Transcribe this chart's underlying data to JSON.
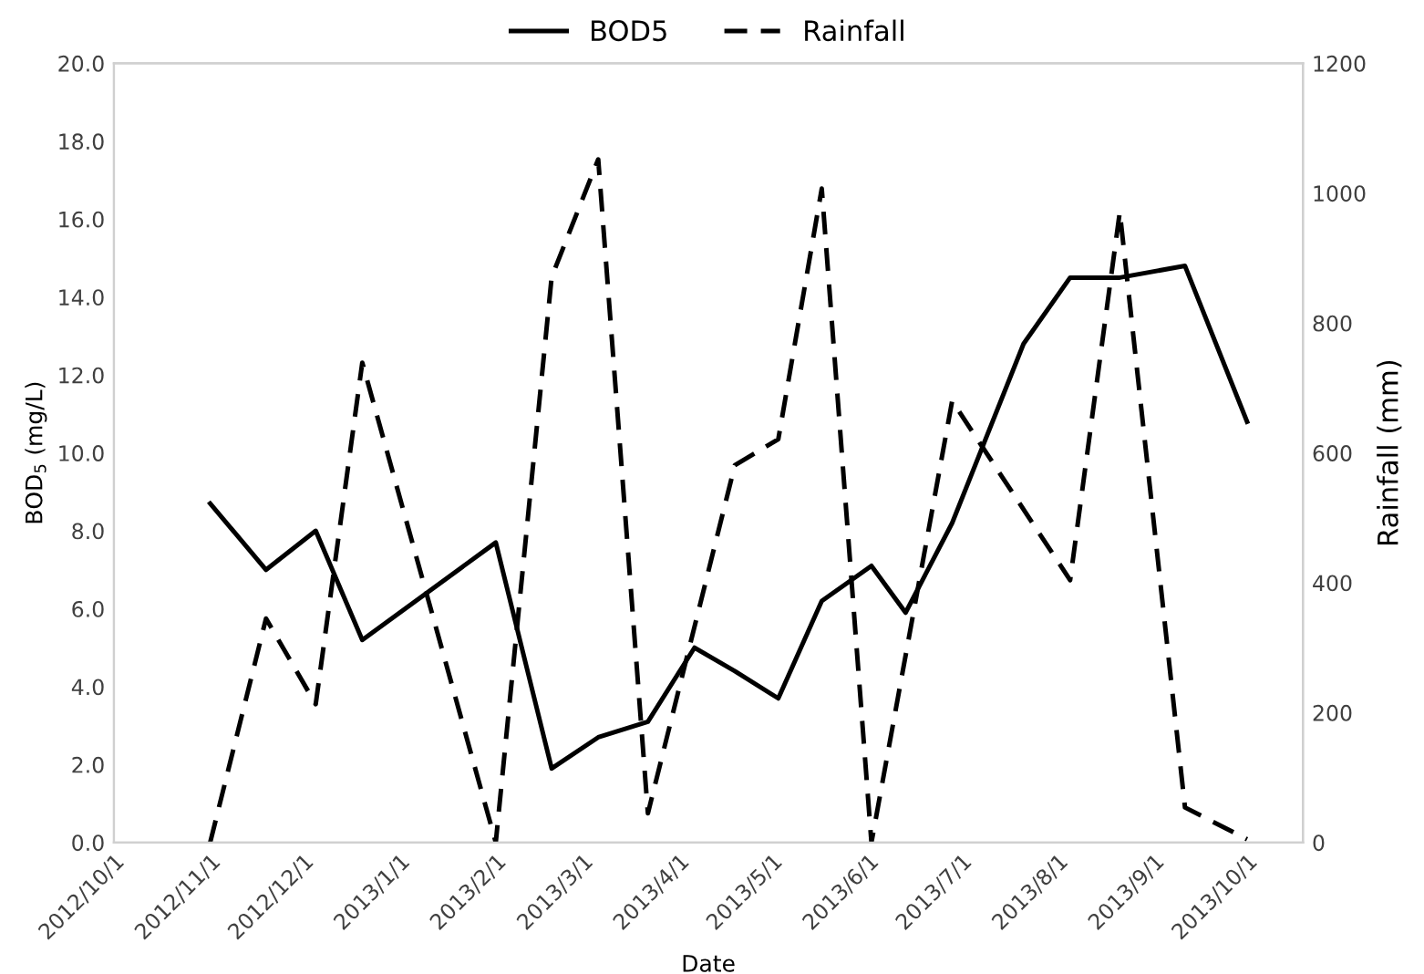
{
  "chart_data": {
    "type": "line",
    "xlabel": "Date",
    "ylabel": "BOD$_{5}$ (mg/L)",
    "y2label": "Rainfall (mm)",
    "xlim": [
      "2012-10-01",
      "2013-10-19"
    ],
    "xticks": [
      {
        "value": "2012-10-01",
        "label": "2012/10/1"
      },
      {
        "value": "2012-11-01",
        "label": "2012/11/1"
      },
      {
        "value": "2012-12-01",
        "label": "2012/12/1"
      },
      {
        "value": "2013-01-01",
        "label": "2013/1/1"
      },
      {
        "value": "2013-02-01",
        "label": "2013/2/1"
      },
      {
        "value": "2013-03-01",
        "label": "2013/3/1"
      },
      {
        "value": "2013-04-01",
        "label": "2013/4/1"
      },
      {
        "value": "2013-05-01",
        "label": "2013/5/1"
      },
      {
        "value": "2013-06-01",
        "label": "2013/6/1"
      },
      {
        "value": "2013-07-01",
        "label": "2013/7/1"
      },
      {
        "value": "2013-08-01",
        "label": "2013/8/1"
      },
      {
        "value": "2013-09-01",
        "label": "2013/9/1"
      },
      {
        "value": "2013-10-01",
        "label": "2013/10/1"
      }
    ],
    "ylim": [
      0,
      20
    ],
    "yticks": [
      {
        "value": 0,
        "label": "0.0"
      },
      {
        "value": 2,
        "label": "2.0"
      },
      {
        "value": 4,
        "label": "4.0"
      },
      {
        "value": 6,
        "label": "6.0"
      },
      {
        "value": 8,
        "label": "8.0"
      },
      {
        "value": 10,
        "label": "10.0"
      },
      {
        "value": 12,
        "label": "12.0"
      },
      {
        "value": 14,
        "label": "14.0"
      },
      {
        "value": 16,
        "label": "16.0"
      },
      {
        "value": 18,
        "label": "18.0"
      },
      {
        "value": 20,
        "label": "20.0"
      }
    ],
    "y2lim": [
      0,
      1200
    ],
    "y2ticks": [
      0,
      200,
      400,
      600,
      800,
      1000,
      1200
    ],
    "legend": "top",
    "grid": false,
    "marker": "none",
    "series": [
      {
        "name": "BOD5",
        "color": "#000000",
        "line_style": "solid",
        "x": [
          "2012-11-01",
          "2012-11-19",
          "2012-12-05",
          "2012-12-20",
          "2013-02-01",
          "2013-02-19",
          "2013-03-06",
          "2013-03-22",
          "2013-04-06",
          "2013-04-19",
          "2013-05-03",
          "2013-05-17",
          "2013-06-02",
          "2013-06-13",
          "2013-06-28",
          "2013-07-21",
          "2013-08-05",
          "2013-08-21",
          "2013-09-11",
          "2013-10-01"
        ],
        "values": [
          8.7,
          7.0,
          8.0,
          5.2,
          7.7,
          1.9,
          2.7,
          3.1,
          5.0,
          4.4,
          3.7,
          6.2,
          7.1,
          5.9,
          8.2,
          12.8,
          14.5,
          14.5,
          14.8,
          10.8
        ]
      },
      {
        "name": "Rainfall",
        "color": "#000000",
        "line_style": "dashed",
        "axis": "y2",
        "x": [
          "2012-11-01",
          "2012-11-19",
          "2012-12-05",
          "2012-12-20",
          "2013-02-01",
          "2013-02-19",
          "2013-03-06",
          "2013-03-22",
          "2013-04-19",
          "2013-05-03",
          "2013-05-17",
          "2013-06-02",
          "2013-06-28",
          "2013-08-05",
          "2013-08-21",
          "2013-09-11",
          "2013-10-01"
        ],
        "values": [
          0,
          345,
          213,
          739,
          0,
          871,
          1052,
          45,
          581,
          621,
          1007,
          0,
          680,
          404,
          971,
          54,
          5
        ]
      }
    ]
  }
}
